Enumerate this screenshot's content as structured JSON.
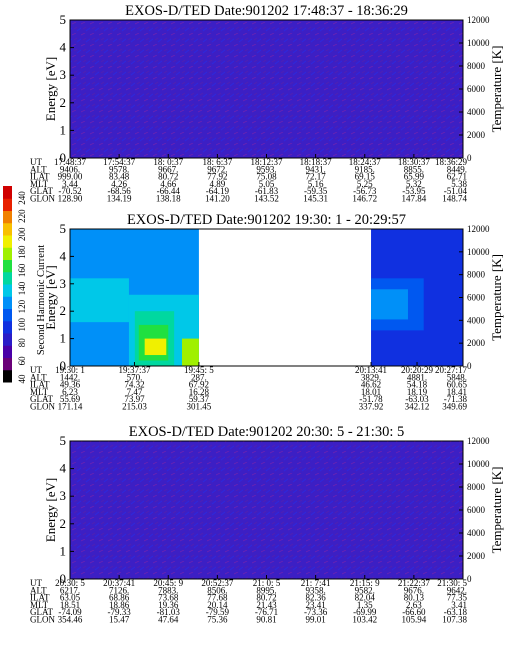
{
  "chart_data": {
    "type": "heatmap",
    "instrument": "EXOS-D/TED",
    "colorbar": {
      "label": "Second Harmonic Current",
      "ticks": [
        "40",
        "60",
        "80",
        "100",
        "120",
        "140",
        "160",
        "180",
        "200",
        "220",
        "240"
      ],
      "colors": [
        "#000000",
        "#6a0078",
        "#4a00a8",
        "#2a1cc8",
        "#1030e0",
        "#0058f0",
        "#0090f8",
        "#00c8e8",
        "#00d8a0",
        "#20e040",
        "#a0f000",
        "#f0f000",
        "#f8c000",
        "#f08000",
        "#e82000",
        "#d00000"
      ]
    },
    "panels": [
      {
        "title": "EXOS-D/TED   Date:901202  17:48:37 - 18:36:29",
        "ylabel": "Energy [eV]",
        "y2label": "Temperature [K]",
        "ylim": [
          0,
          5
        ],
        "y2lim": [
          0,
          12000
        ],
        "yticks": [
          "0",
          "1",
          "2",
          "3",
          "4",
          "5"
        ],
        "y2ticks": [
          "0",
          "2000",
          "4000",
          "6000",
          "8000",
          "10000",
          "12000"
        ],
        "row_labels": [
          "UT",
          "ALT",
          "ILAT",
          "MLT",
          "GLAT",
          "GLON"
        ],
        "columns": [
          [
            "17:48:37",
            "9406.",
            "999.00",
            "3.44",
            "-70.52",
            "128.90"
          ],
          [
            "17:54:37",
            "9578.",
            "83.48",
            "4.26",
            "-68.56",
            "134.19"
          ],
          [
            "18: 0:37",
            "9667.",
            "80.72",
            "4.66",
            "-66.44",
            "138.18"
          ],
          [
            "18: 6:37",
            "9672.",
            "77.92",
            "4.89",
            "-64.19",
            "141.20"
          ],
          [
            "18:12:37",
            "9593.",
            "75.08",
            "5.05",
            "-61.83",
            "143.52"
          ],
          [
            "18:18:37",
            "9431.",
            "72.17",
            "5.16",
            "-59.35",
            "145.31"
          ],
          [
            "18:24:37",
            "9185.",
            "69.15",
            "5.25",
            "-56.73",
            "146.72"
          ],
          [
            "18:30:37",
            "8855.",
            "65.99",
            "5.32",
            "-53.95",
            "147.84"
          ],
          [
            "18:36:29",
            "8449.",
            "62.71",
            "5.38",
            "-51.04",
            "148.74"
          ]
        ],
        "blobs": []
      },
      {
        "title": "EXOS-D/TED   Date:901202  19:30: 1 - 20:29:57",
        "ylabel": "Energy [eV]",
        "y2label": "Temperature [K]",
        "ylim": [
          0,
          5
        ],
        "y2lim": [
          0,
          12000
        ],
        "yticks": [
          "0",
          "1",
          "2",
          "3",
          "4",
          "5"
        ],
        "y2ticks": [
          "0",
          "2000",
          "4000",
          "6000",
          "8000",
          "10000",
          "12000"
        ],
        "row_labels": [
          "UT",
          "ALT",
          "ILAT",
          "MLT",
          "GLAT",
          "GLON"
        ],
        "columns": [
          [
            "19:30: 1",
            "1442.",
            "49.36",
            "6.23",
            "55.69",
            "171.14"
          ],
          [
            "19:37:37",
            "570.",
            "74.32",
            "7.47",
            "73.97",
            "215.03"
          ],
          [
            "19:45: 5",
            "287.",
            "67.92",
            "16.28",
            "59.37",
            "301.45"
          ],
          [
            "20:13:41",
            "3829.",
            "46.62",
            "18.01",
            "-51.78",
            "337.92"
          ],
          [
            "20:20:29",
            "4881.",
            "54.18",
            "18.19",
            "-63.03",
            "342.12"
          ],
          [
            "20:27:17",
            "5848.",
            "60.65",
            "18.41",
            "-71.38",
            "349.69"
          ]
        ],
        "blobs": [
          {
            "x0": 0.0,
            "x1": 0.328,
            "y0": 0.0,
            "y1": 5.0,
            "level": 6
          },
          {
            "x0": 0.0,
            "x1": 0.15,
            "y0": 1.6,
            "y1": 3.2,
            "level": 7
          },
          {
            "x0": 0.15,
            "x1": 0.328,
            "y0": 0.0,
            "y1": 2.6,
            "level": 7
          },
          {
            "x0": 0.165,
            "x1": 0.265,
            "y0": 0.0,
            "y1": 2.0,
            "level": 8
          },
          {
            "x0": 0.175,
            "x1": 0.25,
            "y0": 0.2,
            "y1": 1.5,
            "level": 9
          },
          {
            "x0": 0.19,
            "x1": 0.245,
            "y0": 0.4,
            "y1": 1.0,
            "level": 11
          },
          {
            "x0": 0.285,
            "x1": 0.328,
            "y0": 0.0,
            "y1": 1.0,
            "level": 10
          },
          {
            "x0": 0.766,
            "x1": 1.0,
            "y0": 0.0,
            "y1": 5.0,
            "level": 4
          },
          {
            "x0": 0.766,
            "x1": 0.9,
            "y0": 1.3,
            "y1": 3.2,
            "level": 5
          },
          {
            "x0": 0.766,
            "x1": 0.86,
            "y0": 1.7,
            "y1": 2.8,
            "level": 6
          }
        ]
      },
      {
        "title": "EXOS-D/TED   Date:901202  20:30: 5 - 21:30: 5",
        "ylabel": "Energy [eV]",
        "y2label": "Temperature [K]",
        "ylim": [
          0,
          5
        ],
        "y2lim": [
          0,
          12000
        ],
        "yticks": [
          "0",
          "1",
          "2",
          "3",
          "4",
          "5"
        ],
        "y2ticks": [
          "0",
          "2000",
          "4000",
          "6000",
          "8000",
          "10000",
          "12000"
        ],
        "row_labels": [
          "UT",
          "ALT",
          "ILAT",
          "MLT",
          "GLAT",
          "GLON"
        ],
        "columns": [
          [
            "20:30: 5",
            "6217.",
            "63.05",
            "18.51",
            "-74.09",
            "354.46"
          ],
          [
            "20:37:41",
            "7126.",
            "68.86",
            "18.86",
            "-79.33",
            "15.47"
          ],
          [
            "20:45: 9",
            "7883.",
            "73.68",
            "19.36",
            "-81.03",
            "47.64"
          ],
          [
            "20:52:37",
            "8506.",
            "77.68",
            "20.14",
            "-79.59",
            "75.36"
          ],
          [
            "21: 0: 5",
            "8995.",
            "80.72",
            "21.43",
            "-76.71",
            "90.81"
          ],
          [
            "21: 7:41",
            "9358.",
            "82.36",
            "23.41",
            "-73.36",
            "99.01"
          ],
          [
            "21:15: 9",
            "9582.",
            "82.04",
            "1.35",
            "-69.99",
            "103.42"
          ],
          [
            "21:22:37",
            "9676.",
            "80.13",
            "2.63",
            "-66.60",
            "105.94"
          ],
          [
            "21:30: 5",
            "9642.",
            "77.35",
            "3.41",
            "-63.18",
            "107.38"
          ]
        ],
        "blobs": []
      }
    ]
  }
}
